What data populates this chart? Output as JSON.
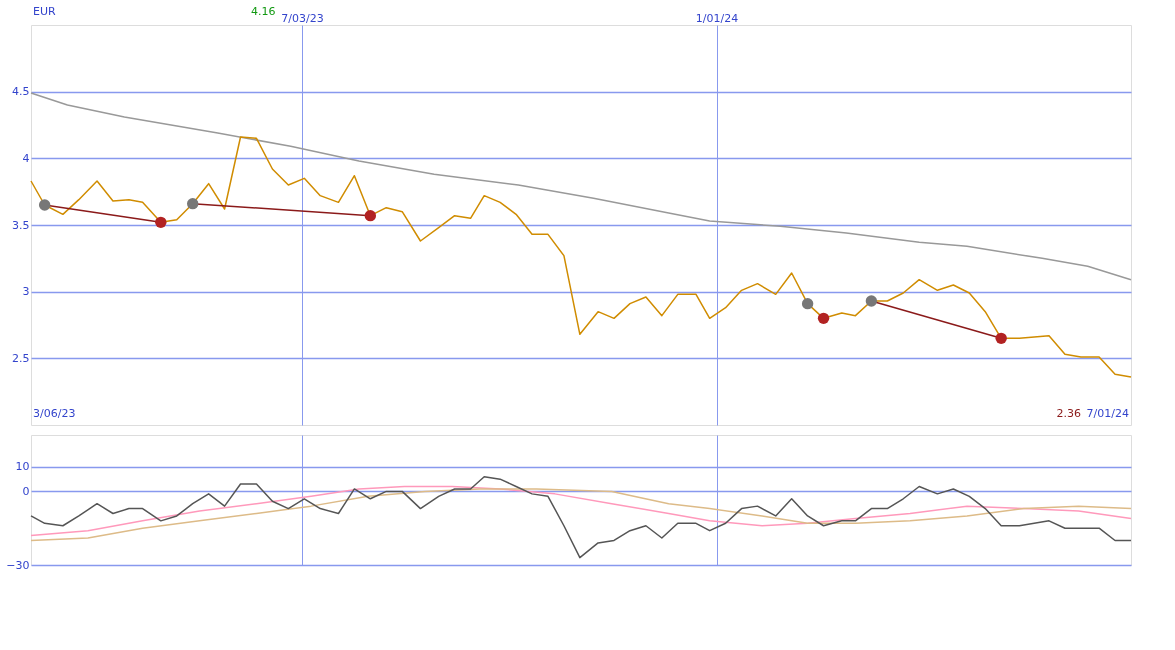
{
  "chart_data": [
    {
      "type": "line",
      "xlim": [
        "2023-03-06",
        "2024-07-01"
      ],
      "ylim": [
        2.0,
        5.0
      ],
      "yticks": [
        2.5,
        3,
        3.5,
        4,
        4.5
      ],
      "xticks": [
        {
          "value": "2023-07-03",
          "label": "7/03/23"
        },
        {
          "value": "2024-01-01",
          "label": "1/01/24"
        }
      ],
      "grid": true,
      "annotations": [
        "EUR",
        "4.16",
        "3/06/23",
        "2.36",
        "7/01/24"
      ],
      "series": [
        {
          "color": "#999999",
          "x": [
            "2023-03-06",
            "2023-03-22",
            "2023-04-16",
            "2023-05-27",
            "2023-06-28",
            "2023-07-28",
            "2023-08-30",
            "2023-10-06",
            "2023-11-08",
            "2023-12-11",
            "2023-12-29",
            "2024-01-29",
            "2024-02-27",
            "2024-03-30",
            "2024-04-20",
            "2024-05-23",
            "2024-06-12",
            "2024-07-01"
          ],
          "values": [
            4.49,
            4.4,
            4.31,
            4.19,
            4.09,
            3.98,
            3.88,
            3.8,
            3.7,
            3.59,
            3.53,
            3.49,
            3.44,
            3.37,
            3.34,
            3.25,
            3.19,
            3.09
          ]
        },
        {
          "color": "#d08c00",
          "x": [
            "2023-03-06",
            "2023-03-12",
            "2023-03-20",
            "2023-03-27",
            "2023-04-04",
            "2023-04-11",
            "2023-04-18",
            "2023-04-24",
            "2023-05-02",
            "2023-05-09",
            "2023-05-16",
            "2023-05-23",
            "2023-05-30",
            "2023-06-06",
            "2023-06-13",
            "2023-06-20",
            "2023-06-27",
            "2023-07-04",
            "2023-07-11",
            "2023-07-19",
            "2023-07-26",
            "2023-08-02",
            "2023-08-09",
            "2023-08-16",
            "2023-08-24",
            "2023-09-01",
            "2023-09-08",
            "2023-09-15",
            "2023-09-21",
            "2023-09-28",
            "2023-10-05",
            "2023-10-12",
            "2023-10-19",
            "2023-10-26",
            "2023-11-02",
            "2023-11-10",
            "2023-11-17",
            "2023-11-24",
            "2023-12-01",
            "2023-12-08",
            "2023-12-15",
            "2023-12-23",
            "2023-12-29",
            "2024-01-05",
            "2024-01-12",
            "2024-01-19",
            "2024-01-27",
            "2024-02-03",
            "2024-02-10",
            "2024-02-17",
            "2024-02-25",
            "2024-03-02",
            "2024-03-09",
            "2024-03-16",
            "2024-03-23",
            "2024-03-30",
            "2024-04-07",
            "2024-04-14",
            "2024-04-21",
            "2024-04-28",
            "2024-05-05",
            "2024-05-13",
            "2024-05-26",
            "2024-06-02",
            "2024-06-09",
            "2024-06-17",
            "2024-06-24",
            "2024-07-01"
          ],
          "values": [
            3.83,
            3.65,
            3.58,
            3.69,
            3.83,
            3.68,
            3.69,
            3.67,
            3.52,
            3.54,
            3.66,
            3.81,
            3.62,
            4.16,
            4.15,
            3.92,
            3.8,
            3.85,
            3.72,
            3.67,
            3.87,
            3.57,
            3.63,
            3.6,
            3.38,
            3.48,
            3.57,
            3.55,
            3.72,
            3.67,
            3.58,
            3.43,
            3.43,
            3.27,
            2.68,
            2.85,
            2.8,
            2.91,
            2.96,
            2.82,
            2.98,
            2.98,
            2.8,
            2.88,
            3.01,
            3.06,
            2.98,
            3.14,
            2.91,
            2.8,
            2.84,
            2.82,
            2.93,
            2.93,
            2.99,
            3.09,
            3.01,
            3.05,
            2.99,
            2.85,
            2.65,
            2.65,
            2.67,
            2.53,
            2.51,
            2.51,
            2.38,
            2.36
          ]
        },
        {
          "type": "line",
          "color": "#8b1a1a",
          "x": [
            "2023-03-12",
            "2023-05-02"
          ],
          "values": [
            3.65,
            3.52
          ]
        },
        {
          "type": "line",
          "color": "#8b1a1a",
          "x": [
            "2023-05-16",
            "2023-08-02"
          ],
          "values": [
            3.66,
            3.57
          ]
        },
        {
          "type": "line",
          "color": "#8b1a1a",
          "x": [
            "2024-03-09",
            "2024-05-05"
          ],
          "values": [
            2.93,
            2.65
          ]
        },
        {
          "type": "scatter",
          "color": "#777777",
          "x": [
            "2023-03-12",
            "2023-05-16",
            "2024-02-10",
            "2024-03-09"
          ],
          "values": [
            3.65,
            3.66,
            2.91,
            2.93
          ]
        },
        {
          "type": "scatter",
          "color": "#b22222",
          "x": [
            "2023-05-02",
            "2023-08-02",
            "2024-02-17",
            "2024-05-05"
          ],
          "values": [
            3.52,
            3.57,
            2.8,
            2.65
          ]
        }
      ]
    },
    {
      "type": "line",
      "xlim": [
        "2023-03-06",
        "2024-07-01"
      ],
      "ylim": [
        -30,
        23
      ],
      "yticks": [
        -30,
        0,
        10
      ],
      "tick_labels": "y",
      "xticks": [
        {
          "value": "2023-07-03",
          "label": null
        },
        {
          "value": "2024-01-01",
          "label": null
        }
      ],
      "grid": true,
      "series": [
        {
          "color": "#ff99bb",
          "x": [
            "2023-03-06",
            "2023-03-31",
            "2023-04-24",
            "2023-05-19",
            "2023-06-13",
            "2023-07-07",
            "2023-07-28",
            "2023-08-17",
            "2023-09-07",
            "2023-09-28",
            "2023-10-22",
            "2023-11-16",
            "2023-12-11",
            "2023-12-29",
            "2024-01-21",
            "2024-02-10",
            "2024-03-02",
            "2024-03-26",
            "2024-04-20",
            "2024-05-15",
            "2024-06-08",
            "2024-07-01"
          ],
          "values": [
            -18,
            -16,
            -12,
            -8,
            -5,
            -2,
            1,
            2,
            2,
            1,
            -1,
            -5,
            -9,
            -12,
            -14,
            -13,
            -11,
            -9,
            -6,
            -7,
            -8,
            -11
          ]
        },
        {
          "color": "#ddbb88",
          "x": [
            "2023-03-06",
            "2023-03-31",
            "2023-04-24",
            "2023-05-19",
            "2023-06-13",
            "2023-07-07",
            "2023-08-01",
            "2023-08-26",
            "2023-09-19",
            "2023-10-14",
            "2023-11-16",
            "2023-12-11",
            "2023-12-29",
            "2024-01-21",
            "2024-02-10",
            "2024-03-02",
            "2024-03-26",
            "2024-04-20",
            "2024-05-15",
            "2024-06-08",
            "2024-07-01"
          ],
          "values": [
            -20,
            -19,
            -15,
            -12,
            -9,
            -6,
            -2,
            0,
            1,
            1,
            0,
            -5,
            -7,
            -10,
            -13,
            -13,
            -12,
            -10,
            -7,
            -6,
            -7
          ]
        },
        {
          "color": "#555555",
          "x": [
            "2023-03-06",
            "2023-03-12",
            "2023-03-20",
            "2023-03-27",
            "2023-04-04",
            "2023-04-11",
            "2023-04-18",
            "2023-04-24",
            "2023-05-02",
            "2023-05-09",
            "2023-05-16",
            "2023-05-23",
            "2023-05-30",
            "2023-06-06",
            "2023-06-13",
            "2023-06-20",
            "2023-06-27",
            "2023-07-04",
            "2023-07-11",
            "2023-07-19",
            "2023-07-26",
            "2023-08-02",
            "2023-08-09",
            "2023-08-16",
            "2023-08-24",
            "2023-09-01",
            "2023-09-08",
            "2023-09-15",
            "2023-09-21",
            "2023-09-28",
            "2023-10-05",
            "2023-10-12",
            "2023-10-19",
            "2023-10-26",
            "2023-11-02",
            "2023-11-10",
            "2023-11-17",
            "2023-11-24",
            "2023-12-01",
            "2023-12-08",
            "2023-12-15",
            "2023-12-23",
            "2023-12-29",
            "2024-01-05",
            "2024-01-12",
            "2024-01-19",
            "2024-01-27",
            "2024-02-03",
            "2024-02-10",
            "2024-02-17",
            "2024-02-25",
            "2024-03-02",
            "2024-03-09",
            "2024-03-16",
            "2024-03-23",
            "2024-03-30",
            "2024-04-07",
            "2024-04-14",
            "2024-04-21",
            "2024-04-28",
            "2024-05-05",
            "2024-05-13",
            "2024-05-26",
            "2024-06-02",
            "2024-06-09",
            "2024-06-17",
            "2024-06-24",
            "2024-07-01"
          ],
          "values": [
            -10,
            -13,
            -14,
            -10,
            -5,
            -9,
            -7,
            -7,
            -12,
            -10,
            -5,
            -1,
            -6,
            3,
            3,
            -4,
            -7,
            -3,
            -7,
            -9,
            1,
            -3,
            0,
            0,
            -7,
            -2,
            1,
            1,
            6,
            5,
            2,
            -1,
            -2,
            -14,
            -27,
            -21,
            -20,
            -16,
            -14,
            -19,
            -13,
            -13,
            -16,
            -13,
            -7,
            -6,
            -10,
            -3,
            -10,
            -14,
            -12,
            -12,
            -7,
            -7,
            -3,
            2,
            -1,
            1,
            -2,
            -7,
            -14,
            -14,
            -12,
            -15,
            -15,
            -15,
            -20,
            -20
          ]
        }
      ]
    }
  ]
}
